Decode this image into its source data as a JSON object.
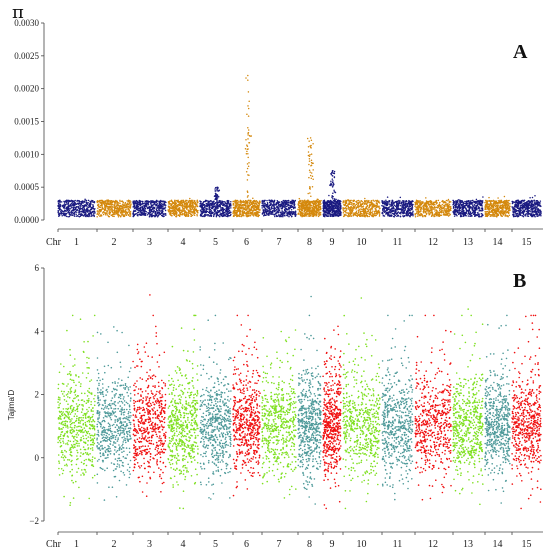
{
  "chart_data": [
    {
      "type": "scatter",
      "panel_label": "A",
      "ylabel": "π",
      "xlabel": "Chr",
      "ylim": [
        0,
        0.003
      ],
      "yticks": [
        "0.0000",
        "0.0005",
        "0.0010",
        "0.0015",
        "0.0020",
        "0.0025",
        "0.0030"
      ],
      "chromosomes": [
        "1",
        "2",
        "3",
        "4",
        "5",
        "6",
        "7",
        "8",
        "9",
        "10",
        "11",
        "12",
        "13",
        "14",
        "15"
      ],
      "colors": [
        "#1a1a80",
        "#d4880c"
      ],
      "baseline": {
        "low": 5e-05,
        "high": 0.0003
      },
      "peaks": [
        {
          "chr": "6",
          "max": 0.0022
        },
        {
          "chr": "8",
          "max": 0.00125
        },
        {
          "chr": "9",
          "max": 0.00075
        },
        {
          "chr": "5",
          "max": 0.0005
        }
      ]
    },
    {
      "type": "scatter",
      "panel_label": "B",
      "ylabel": "Tajima'D",
      "xlabel": "Chr",
      "ylim": [
        -2,
        6
      ],
      "yticks": [
        "−2",
        "0",
        "2",
        "4",
        "6"
      ],
      "chromosomes": [
        "1",
        "2",
        "3",
        "4",
        "5",
        "6",
        "7",
        "8",
        "9",
        "10",
        "11",
        "12",
        "13",
        "14",
        "15"
      ],
      "colors": [
        "#7fe020",
        "#4f9a9a",
        "#f01010"
      ],
      "baseline": {
        "center": 0.9,
        "spread": 0.9
      },
      "maxima": [
        {
          "chr": "3",
          "max": 5.15
        },
        {
          "chr": "8",
          "max": 5.1
        },
        {
          "chr": "10",
          "max": 5.05
        },
        {
          "chr": "13",
          "max": 4.7
        }
      ]
    }
  ]
}
